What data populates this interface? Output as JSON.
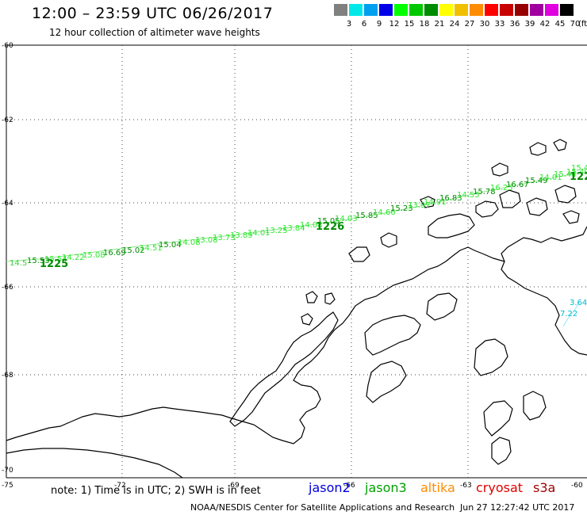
{
  "title": "12:00 – 23:59 UTC 06/26/2017",
  "subtitle": "12 hour collection of altimeter wave heights",
  "scale": {
    "unit": "(ft)",
    "labels": [
      "3",
      "6",
      "9",
      "12",
      "15",
      "18",
      "21",
      "24",
      "27",
      "30",
      "33",
      "36",
      "39",
      "42",
      "45",
      "70"
    ],
    "colors": [
      "#808080",
      "#00e8e8",
      "#00a0f0",
      "#0000e8",
      "#00ff00",
      "#00c800",
      "#008c00",
      "#ffff00",
      "#f0c000",
      "#ff8c00",
      "#ff0000",
      "#c80000",
      "#960000",
      "#a000a0",
      "#e000e0",
      "#000000"
    ]
  },
  "axes": {
    "lat_labels": [
      "-60",
      "-62",
      "-64",
      "-66",
      "-68",
      "-70"
    ],
    "lon_labels": [
      "-75",
      "-72",
      "-69",
      "-66",
      "-63",
      "-60"
    ]
  },
  "track_jason3": {
    "color": "#2ee82e",
    "labels": [
      {
        "text": "14.5",
        "dark": false
      },
      {
        "text": "15.53",
        "dark": false
      },
      {
        "text": "15.54",
        "dark": false
      },
      {
        "text": "14.22",
        "dark": false
      },
      {
        "text": "15.08",
        "dark": false
      },
      {
        "text": "16.69",
        "dark": true
      },
      {
        "text": "15.02",
        "dark": true
      },
      {
        "text": "14.51",
        "dark": false
      },
      {
        "text": "15.04",
        "dark": true
      },
      {
        "text": "14.08",
        "dark": false
      },
      {
        "text": "13.08",
        "dark": false
      },
      {
        "text": "13.73",
        "dark": false
      },
      {
        "text": "13.89",
        "dark": false
      },
      {
        "text": "14.01",
        "dark": false
      },
      {
        "text": "13.25",
        "dark": false
      },
      {
        "text": "13.84",
        "dark": false
      },
      {
        "text": "14.08",
        "dark": false
      },
      {
        "text": "15.05",
        "dark": true
      },
      {
        "text": "14.03",
        "dark": false
      },
      {
        "text": "15.85",
        "dark": true
      },
      {
        "text": "14.66",
        "dark": false
      },
      {
        "text": "15.23",
        "dark": true
      },
      {
        "text": "13.97",
        "dark": false
      },
      {
        "text": "14.91",
        "dark": false
      },
      {
        "text": "16.83",
        "dark": true
      },
      {
        "text": "14.55",
        "dark": false
      },
      {
        "text": "15.78",
        "dark": true
      },
      {
        "text": "16.25",
        "dark": false
      },
      {
        "text": "16.67",
        "dark": true
      },
      {
        "text": "15.49",
        "dark": true
      },
      {
        "text": "14.01",
        "dark": false
      },
      {
        "text": "15.44",
        "dark": false
      },
      {
        "text": "15.49",
        "dark": false
      },
      {
        "text": "15.4",
        "dark": false
      }
    ],
    "time_labels": [
      "1225",
      "1226",
      "122"
    ]
  },
  "track_jason2": {
    "color": "#00c8d8",
    "labels": [
      "3.64",
      "7.22"
    ]
  },
  "satellites": [
    {
      "name": "jason2",
      "color": "#0000e0"
    },
    {
      "name": "jason3",
      "color": "#00a000"
    },
    {
      "name": "altika",
      "color": "#ff8c00"
    },
    {
      "name": "cryosat",
      "color": "#e00000"
    },
    {
      "name": "s3a",
      "color": "#a00000"
    }
  ],
  "note": "note: 1) Time is in UTC; 2) SWH is in feet",
  "credit": "NOAA/NESDIS Center for Satellite Applications and Research",
  "timestamp": "Jun 27 12:27:42 UTC 2017"
}
